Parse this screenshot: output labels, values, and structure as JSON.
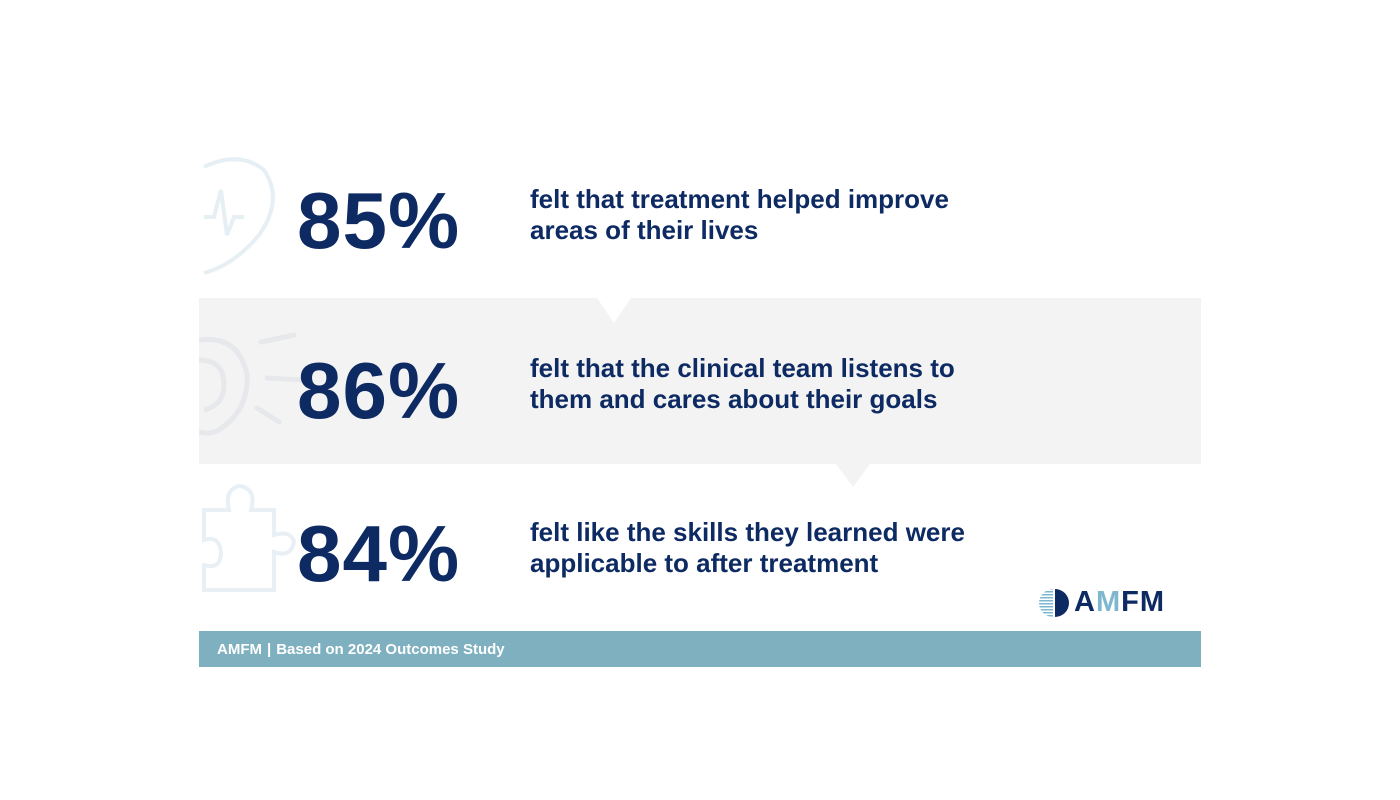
{
  "stats": [
    {
      "value": "85%",
      "text_line1": "felt that treatment helped improve",
      "text_line2": "areas of their lives",
      "icon": "heart-pulse-icon"
    },
    {
      "value": "86%",
      "text_line1": "felt that the clinical team listens to",
      "text_line2": "them and cares about their goals",
      "icon": "ear-icon"
    },
    {
      "value": "84%",
      "text_line1": "felt like the skills they learned were",
      "text_line2": "applicable to after treatment",
      "icon": "puzzle-icon"
    }
  ],
  "logo": {
    "part1": "A",
    "part2": "M",
    "part3": "FM"
  },
  "footer": {
    "brand": "AMFM",
    "separator": "|",
    "text": "Based on 2024 Outcomes Study"
  },
  "colors": {
    "navy": "#0d2a63",
    "band": "#f3f3f3",
    "footer": "#7eb0c0",
    "logo_accent": "#7eb8cf"
  }
}
